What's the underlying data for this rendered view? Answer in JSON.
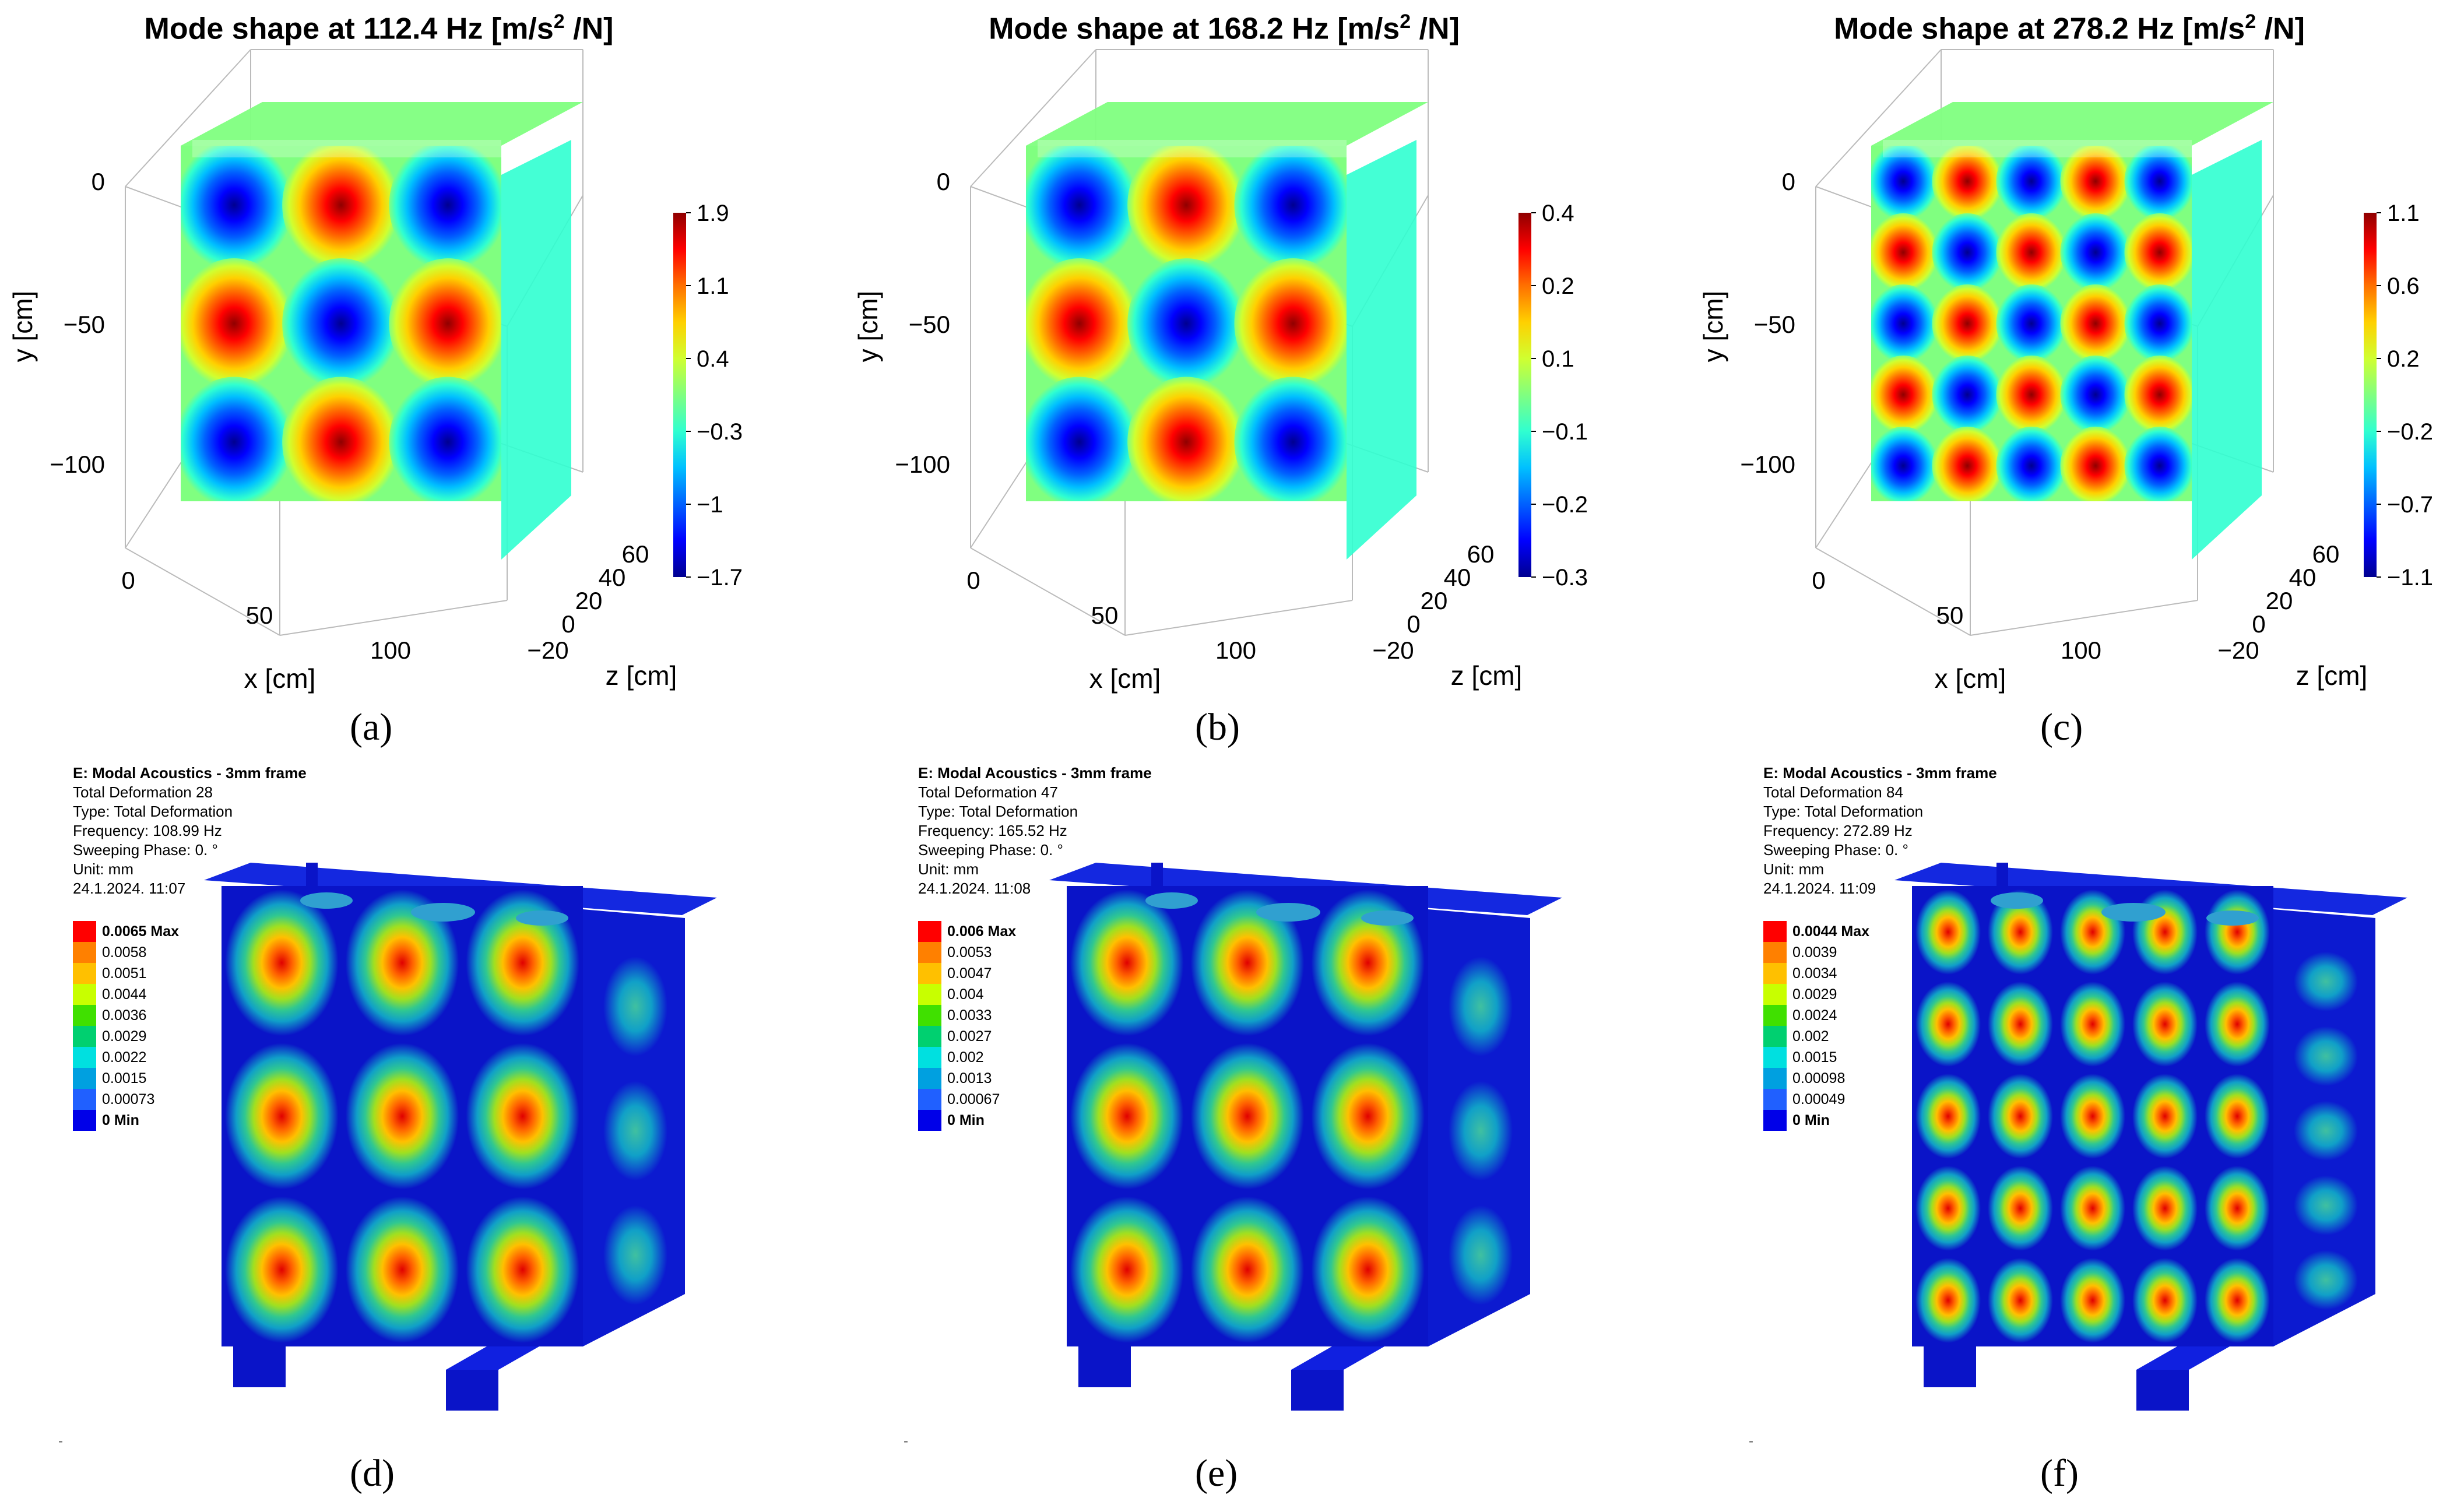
{
  "figures_top": [
    {
      "id": "a",
      "title_prefix": "Mode shape at 112.4 Hz [m/s",
      "title_sup": "2",
      "title_suffix": " /N]",
      "colorbar_ticks": [
        "1.9",
        "1.1",
        "0.4",
        "−0.3",
        "−1",
        "−1.7"
      ],
      "panel_label": "(a)",
      "modes": [
        3,
        3
      ]
    },
    {
      "id": "b",
      "title_prefix": "Mode shape at 168.2 Hz [m/s",
      "title_sup": "2",
      "title_suffix": " /N]",
      "colorbar_ticks": [
        "0.4",
        "0.2",
        "0.1",
        "−0.1",
        "−0.2",
        "−0.3"
      ],
      "panel_label": "(b)",
      "modes": [
        3,
        3
      ]
    },
    {
      "id": "c",
      "title_prefix": "Mode shape at 278.2 Hz [m/s",
      "title_sup": "2",
      "title_suffix": " /N]",
      "colorbar_ticks": [
        "1.1",
        "0.6",
        "0.2",
        "−0.2",
        "−0.7",
        "−1.1"
      ],
      "panel_label": "(c)",
      "modes": [
        5,
        5
      ]
    }
  ],
  "axes": {
    "ylabel": "y [cm]",
    "xlabel": "x [cm]",
    "zlabel": "z [cm]",
    "y_ticks": [
      "0",
      "−50",
      "−100"
    ],
    "x_ticks": [
      "0",
      "50",
      "100"
    ],
    "z_ticks": [
      "60",
      "40",
      "20",
      "0",
      "−20"
    ]
  },
  "figures_bottom": [
    {
      "id": "d",
      "header": "E: Modal Acoustics - 3mm frame",
      "lines": [
        "Total Deformation 28",
        "Type: Total Deformation",
        "Frequency: 108.99 Hz",
        "Sweeping Phase: 0. °",
        "Unit: mm",
        "24.1.2024. 11:07"
      ],
      "legend": [
        "0.0065 Max",
        "0.0058",
        "0.0051",
        "0.0044",
        "0.0036",
        "0.0029",
        "0.0022",
        "0.0015",
        "0.00073",
        "0 Min"
      ],
      "panel_label": "(d)",
      "modes": [
        3,
        3
      ]
    },
    {
      "id": "e",
      "header": "E: Modal Acoustics - 3mm frame",
      "lines": [
        "Total Deformation 47",
        "Type: Total Deformation",
        "Frequency: 165.52 Hz",
        "Sweeping Phase: 0. °",
        "Unit: mm",
        "24.1.2024. 11:08"
      ],
      "legend": [
        "0.006 Max",
        "0.0053",
        "0.0047",
        "0.004",
        "0.0033",
        "0.0027",
        "0.002",
        "0.0013",
        "0.00067",
        "0 Min"
      ],
      "panel_label": "(e)",
      "modes": [
        3,
        3
      ]
    },
    {
      "id": "f",
      "header": "E: Modal Acoustics - 3mm frame",
      "lines": [
        "Total Deformation 84",
        "Type: Total Deformation",
        "Frequency: 272.89 Hz",
        "Sweeping Phase: 0. °",
        "Unit: mm",
        "24.1.2024. 11:09"
      ],
      "legend": [
        "0.0044 Max",
        "0.0039",
        "0.0034",
        "0.0029",
        "0.0024",
        "0.002",
        "0.0015",
        "0.00098",
        "0.00049",
        "0 Min"
      ],
      "panel_label": "(f)",
      "modes": [
        5,
        5
      ]
    }
  ],
  "colors": {
    "jet": [
      "#00008f",
      "#0000ff",
      "#0060ff",
      "#00c0ff",
      "#30ffd0",
      "#80ff80",
      "#d0ff30",
      "#ffd000",
      "#ff7000",
      "#ff0000",
      "#8f0000"
    ],
    "ansys_legend": [
      "#ff0000",
      "#ff8000",
      "#ffc000",
      "#c8ff00",
      "#40e000",
      "#00d070",
      "#00e0e0",
      "#00a0e0",
      "#2060ff",
      "#0000e8"
    ],
    "ansys_base": "#0a14c8"
  }
}
